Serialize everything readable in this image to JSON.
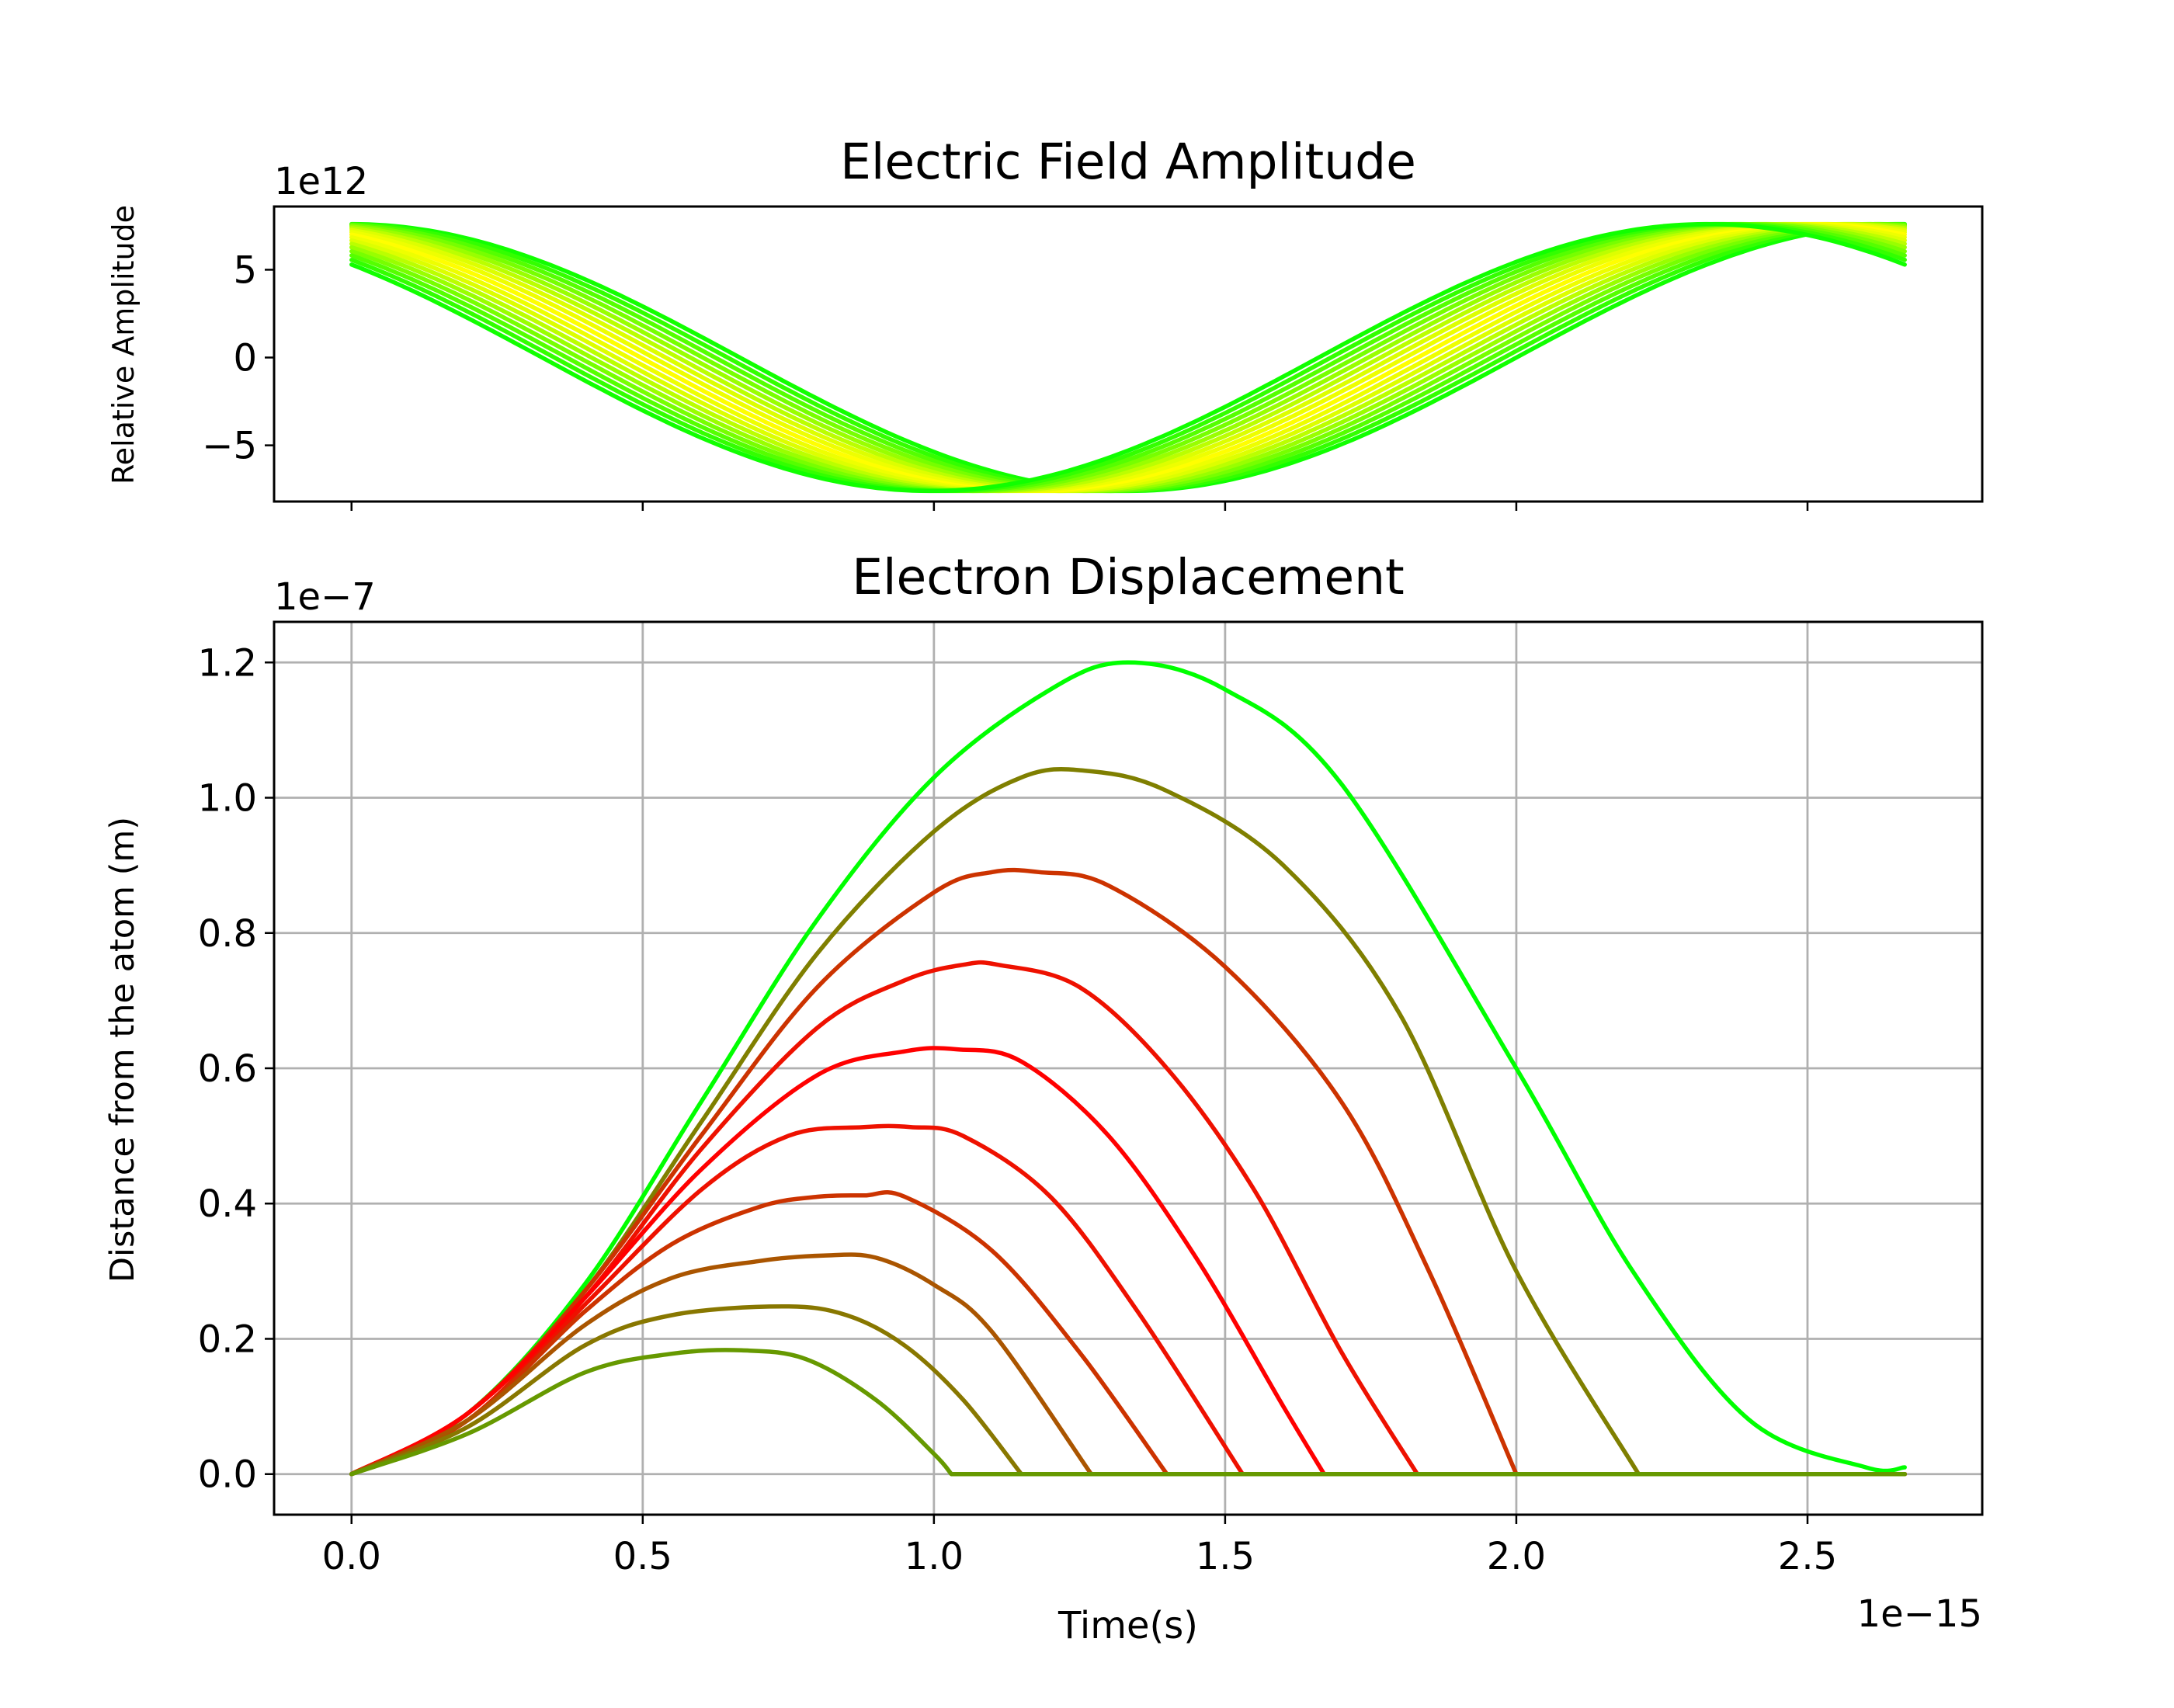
{
  "chart_data": [
    {
      "type": "line",
      "title": "Electric Field Amplitude",
      "xlabel": "",
      "ylabel": "Relative Amplitude",
      "y_multiplier": "1e12",
      "xlim": [
        -0.133,
        2.8
      ],
      "ylim": [
        -8.2,
        8.6
      ],
      "x_multiplier_value": 1e-15,
      "y_multiplier_value": 1000000000000.0,
      "yticks": [
        {
          "value": -5,
          "label": "−5"
        },
        {
          "value": 0,
          "label": "0"
        },
        {
          "value": 5,
          "label": "5"
        }
      ],
      "xticks_values": [
        0,
        0.5,
        1.0,
        1.5,
        2.0,
        2.5
      ],
      "grid": false,
      "x_end": 2.667,
      "field_amplitude": 7.6,
      "period": 2.667,
      "phases": [
        0,
        0.05,
        0.1,
        0.15,
        0.2,
        0.25,
        0.3,
        0.35,
        0.4,
        0.45,
        0.5,
        0.55,
        0.6,
        0.65,
        0.7,
        0.75,
        0.8
      ],
      "phase_colors": [
        "#11ff00",
        "#33ff00",
        "#55ff00",
        "#77ff00",
        "#99ff00",
        "#bbff00",
        "#ddff00",
        "#eeff00",
        "#ffff00",
        "#eeff00",
        "#ddff00",
        "#bbff00",
        "#99ff00",
        "#77ff00",
        "#55ff00",
        "#33ff00",
        "#11ff00"
      ]
    },
    {
      "type": "line",
      "title": "Electron Displacement",
      "xlabel": "Time(s)",
      "ylabel": "Distance from the atom (m)",
      "x_multiplier": "1e−15",
      "y_multiplier": "1e−7",
      "xlim": [
        -0.133,
        2.8
      ],
      "ylim": [
        -0.06,
        1.26
      ],
      "x_multiplier_value": 1e-15,
      "y_multiplier_value": 1e-07,
      "xticks": [
        {
          "value": 0,
          "label": "0.0"
        },
        {
          "value": 0.5,
          "label": "0.5"
        },
        {
          "value": 1.0,
          "label": "1.0"
        },
        {
          "value": 1.5,
          "label": "1.5"
        },
        {
          "value": 2.0,
          "label": "2.0"
        },
        {
          "value": 2.5,
          "label": "2.5"
        }
      ],
      "yticks": [
        {
          "value": 0,
          "label": "0.0"
        },
        {
          "value": 0.2,
          "label": "0.2"
        },
        {
          "value": 0.4,
          "label": "0.4"
        },
        {
          "value": 0.6,
          "label": "0.6"
        },
        {
          "value": 0.8,
          "label": "0.8"
        },
        {
          "value": 1.0,
          "label": "1.0"
        },
        {
          "value": 1.2,
          "label": "1.2"
        }
      ],
      "grid": true,
      "x_end": 2.667,
      "series": [
        {
          "color": "#00ff00",
          "x": [
            0,
            0.2,
            0.4,
            0.6,
            0.8,
            1.0,
            1.2,
            1.333,
            1.5,
            1.7,
            2.0,
            2.2,
            2.4,
            2.6,
            2.667
          ],
          "y": [
            0,
            0.09,
            0.28,
            0.55,
            0.82,
            1.03,
            1.16,
            1.2,
            1.16,
            1.02,
            0.6,
            0.3,
            0.08,
            0.01,
            0.01
          ],
          "zero_from": 2.667
        },
        {
          "color": "#7f7f00",
          "x": [
            0,
            0.2,
            0.4,
            0.6,
            0.8,
            1.0,
            1.15,
            1.26,
            1.4,
            1.6,
            1.8,
            2.0,
            2.21
          ],
          "y": [
            0,
            0.09,
            0.27,
            0.52,
            0.77,
            0.95,
            1.03,
            1.04,
            1.01,
            0.9,
            0.68,
            0.3,
            0
          ],
          "zero_from": 2.21
        },
        {
          "color": "#cc3300",
          "x": [
            0,
            0.2,
            0.4,
            0.6,
            0.8,
            1.0,
            1.1,
            1.18,
            1.3,
            1.5,
            1.7,
            1.85,
            2.0
          ],
          "y": [
            0,
            0.09,
            0.27,
            0.5,
            0.72,
            0.86,
            0.89,
            0.89,
            0.87,
            0.75,
            0.55,
            0.3,
            0
          ],
          "zero_from": 2.0
        },
        {
          "color": "#ee1100",
          "x": [
            0,
            0.2,
            0.4,
            0.6,
            0.8,
            0.95,
            1.05,
            1.11,
            1.25,
            1.4,
            1.55,
            1.7,
            1.83
          ],
          "y": [
            0,
            0.09,
            0.26,
            0.48,
            0.66,
            0.73,
            0.753,
            0.753,
            0.72,
            0.6,
            0.42,
            0.18,
            0
          ],
          "zero_from": 1.83
        },
        {
          "color": "#ff0000",
          "x": [
            0,
            0.2,
            0.4,
            0.6,
            0.8,
            0.95,
            1.04,
            1.15,
            1.3,
            1.45,
            1.6,
            1.67
          ],
          "y": [
            0,
            0.09,
            0.26,
            0.45,
            0.59,
            0.625,
            0.628,
            0.61,
            0.5,
            0.32,
            0.1,
            0
          ],
          "zero_from": 1.67
        },
        {
          "color": "#ee1100",
          "x": [
            0,
            0.2,
            0.4,
            0.6,
            0.75,
            0.88,
            0.96,
            1.05,
            1.2,
            1.35,
            1.53
          ],
          "y": [
            0,
            0.08,
            0.25,
            0.42,
            0.5,
            0.513,
            0.513,
            0.5,
            0.41,
            0.24,
            0
          ],
          "zero_from": 1.53
        },
        {
          "color": "#cc3300",
          "x": [
            0,
            0.2,
            0.4,
            0.55,
            0.7,
            0.8,
            0.88,
            0.95,
            1.1,
            1.25,
            1.4
          ],
          "y": [
            0,
            0.08,
            0.24,
            0.34,
            0.395,
            0.41,
            0.412,
            0.41,
            0.33,
            0.18,
            0
          ],
          "zero_from": 1.4
        },
        {
          "color": "#aa5500",
          "x": [
            0,
            0.2,
            0.4,
            0.55,
            0.7,
            0.81,
            0.9,
            1.0,
            1.1,
            1.27
          ],
          "y": [
            0,
            0.08,
            0.22,
            0.29,
            0.315,
            0.323,
            0.32,
            0.28,
            0.21,
            0
          ],
          "zero_from": 1.27
        },
        {
          "color": "#887700",
          "x": [
            0,
            0.2,
            0.4,
            0.55,
            0.74,
            0.85,
            0.95,
            1.05,
            1.15
          ],
          "y": [
            0,
            0.07,
            0.19,
            0.235,
            0.248,
            0.235,
            0.19,
            0.11,
            0
          ],
          "zero_from": 1.15
        },
        {
          "color": "#669900",
          "x": [
            0,
            0.2,
            0.4,
            0.55,
            0.67,
            0.78,
            0.9,
            1.0,
            1.03
          ],
          "y": [
            0,
            0.06,
            0.15,
            0.178,
            0.183,
            0.17,
            0.11,
            0.03,
            0
          ],
          "zero_from": 1.03
        }
      ]
    }
  ]
}
